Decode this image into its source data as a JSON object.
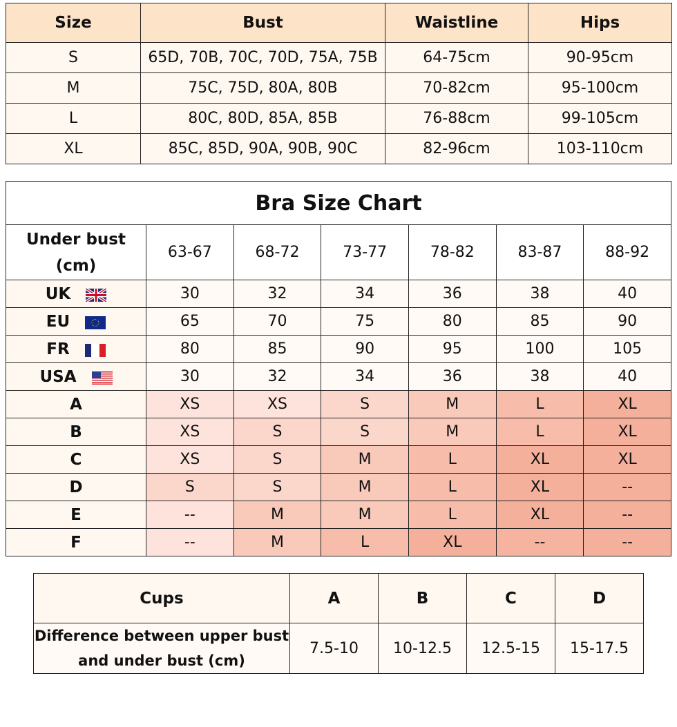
{
  "size_table": {
    "headers": [
      "Size",
      "Bust",
      "Waistline",
      "Hips"
    ],
    "rows": [
      [
        "S",
        "65D, 70B, 70C, 70D, 75A, 75B",
        "64-75cm",
        "90-95cm"
      ],
      [
        "M",
        "75C, 75D, 80A, 80B",
        "70-82cm",
        "95-100cm"
      ],
      [
        "L",
        "80C, 80D, 85A, 85B",
        "76-88cm",
        "99-105cm"
      ],
      [
        "XL",
        "85C, 85D, 90A, 90B, 90C",
        "82-96cm",
        "103-110cm"
      ]
    ]
  },
  "bra_chart": {
    "title": "Bra Size Chart",
    "under_bust_label": "Under bust (cm)",
    "ranges": [
      "63-67",
      "68-72",
      "73-77",
      "78-82",
      "83-87",
      "88-92"
    ],
    "region_rows": [
      {
        "label": "UK",
        "flag": "uk-flag-icon",
        "values": [
          "30",
          "32",
          "34",
          "36",
          "38",
          "40"
        ]
      },
      {
        "label": "EU",
        "flag": "eu-flag-icon",
        "values": [
          "65",
          "70",
          "75",
          "80",
          "85",
          "90"
        ]
      },
      {
        "label": "FR",
        "flag": "fr-flag-icon",
        "values": [
          "80",
          "85",
          "90",
          "95",
          "100",
          "105"
        ]
      },
      {
        "label": "USA",
        "flag": "usa-flag-icon",
        "values": [
          "30",
          "32",
          "34",
          "36",
          "38",
          "40"
        ]
      }
    ],
    "cup_rows": [
      {
        "label": "A",
        "values": [
          "XS",
          "XS",
          "S",
          "M",
          "L",
          "XL"
        ]
      },
      {
        "label": "B",
        "values": [
          "XS",
          "S",
          "S",
          "M",
          "L",
          "XL"
        ]
      },
      {
        "label": "C",
        "values": [
          "XS",
          "S",
          "M",
          "L",
          "XL",
          "XL"
        ]
      },
      {
        "label": "D",
        "values": [
          "S",
          "S",
          "M",
          "L",
          "XL",
          "--"
        ]
      },
      {
        "label": "E",
        "values": [
          "--",
          "M",
          "M",
          "L",
          "XL",
          "--"
        ]
      },
      {
        "label": "F",
        "values": [
          "--",
          "M",
          "L",
          "XL",
          "--",
          "--"
        ]
      }
    ],
    "size_colors": {
      "XS": "#fde3db",
      "S": "#fbd6cb",
      "M": "#f9c9ba",
      "L": "#f7bcaa",
      "XL": "#f4b09b"
    }
  },
  "cups_table": {
    "header_label": "Cups",
    "row_label": "Difference between upper bust and under bust (cm)",
    "cups": [
      "A",
      "B",
      "C",
      "D"
    ],
    "values": [
      "7.5-10",
      "10-12.5",
      "12.5-15",
      "15-17.5"
    ]
  }
}
